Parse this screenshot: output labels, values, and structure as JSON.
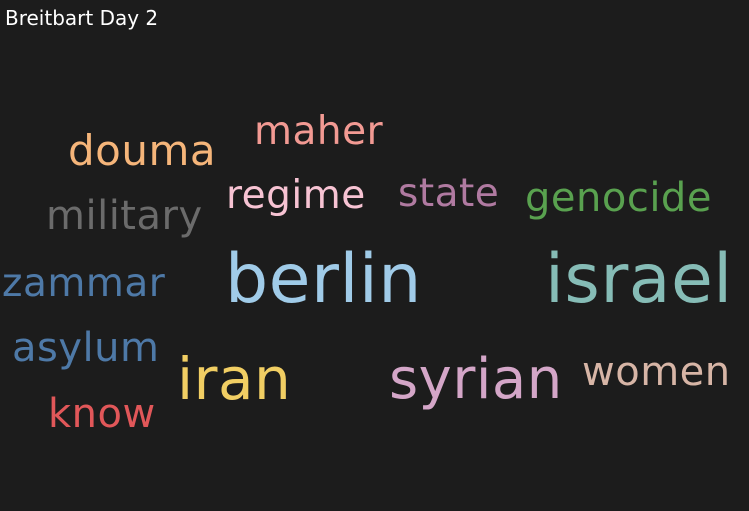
{
  "title": "Breitbart Day 2",
  "words": [
    {
      "text": "douma",
      "color": "#f5b57a"
    },
    {
      "text": "maher",
      "color": "#f29a93"
    },
    {
      "text": "regime",
      "color": "#f7c3d3"
    },
    {
      "text": "state",
      "color": "#b07aa1"
    },
    {
      "text": "genocide",
      "color": "#59a14f"
    },
    {
      "text": "military",
      "color": "#6b6b6b"
    },
    {
      "text": "zammar",
      "color": "#4e79a7"
    },
    {
      "text": "berlin",
      "color": "#a0cbe8"
    },
    {
      "text": "israel",
      "color": "#86bcb6"
    },
    {
      "text": "asylum",
      "color": "#4e79a7"
    },
    {
      "text": "iran",
      "color": "#f1ce63"
    },
    {
      "text": "syrian",
      "color": "#d4a6c8"
    },
    {
      "text": "women",
      "color": "#d7b5a6"
    },
    {
      "text": "know",
      "color": "#e15759"
    }
  ]
}
